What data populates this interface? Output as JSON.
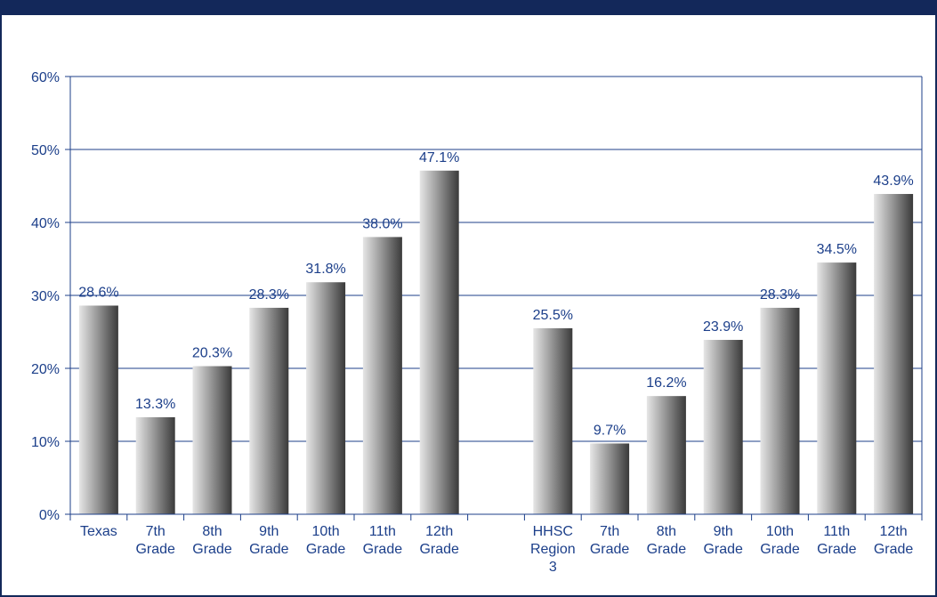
{
  "chart_data": {
    "type": "bar",
    "categories": [
      [
        "Texas"
      ],
      [
        "7th",
        "Grade"
      ],
      [
        "8th",
        "Grade"
      ],
      [
        "9th",
        "Grade"
      ],
      [
        "10th",
        "Grade"
      ],
      [
        "11th",
        "Grade"
      ],
      [
        "12th",
        "Grade"
      ],
      [],
      [
        "HHSC",
        "Region",
        "3"
      ],
      [
        "7th",
        "Grade"
      ],
      [
        "8th",
        "Grade"
      ],
      [
        "9th",
        "Grade"
      ],
      [
        "10th",
        "Grade"
      ],
      [
        "11th",
        "Grade"
      ],
      [
        "12th",
        "Grade"
      ]
    ],
    "values": [
      28.6,
      13.3,
      20.3,
      28.3,
      31.8,
      38.0,
      47.1,
      null,
      25.5,
      9.7,
      16.2,
      23.9,
      28.3,
      34.5,
      43.9
    ],
    "value_labels": [
      "28.6%",
      "13.3%",
      "20.3%",
      "28.3%",
      "31.8%",
      "38.0%",
      "47.1%",
      "",
      "25.5%",
      "9.7%",
      "16.2%",
      "23.9%",
      "28.3%",
      "34.5%",
      "43.9%"
    ],
    "ylim": [
      0,
      60
    ],
    "yticks": [
      0,
      10,
      20,
      30,
      40,
      50,
      60
    ],
    "ytick_labels": [
      "0%",
      "10%",
      "20%",
      "30%",
      "40%",
      "50%",
      "60%"
    ],
    "grid": true,
    "title": "",
    "xlabel": "",
    "ylabel": "",
    "colors": {
      "frame": "#13285a",
      "axis": "#1c3f8a",
      "text": "#1c3f8a",
      "bar_dark": "#3a3a3a",
      "bar_light": "#e6e6e6"
    }
  }
}
